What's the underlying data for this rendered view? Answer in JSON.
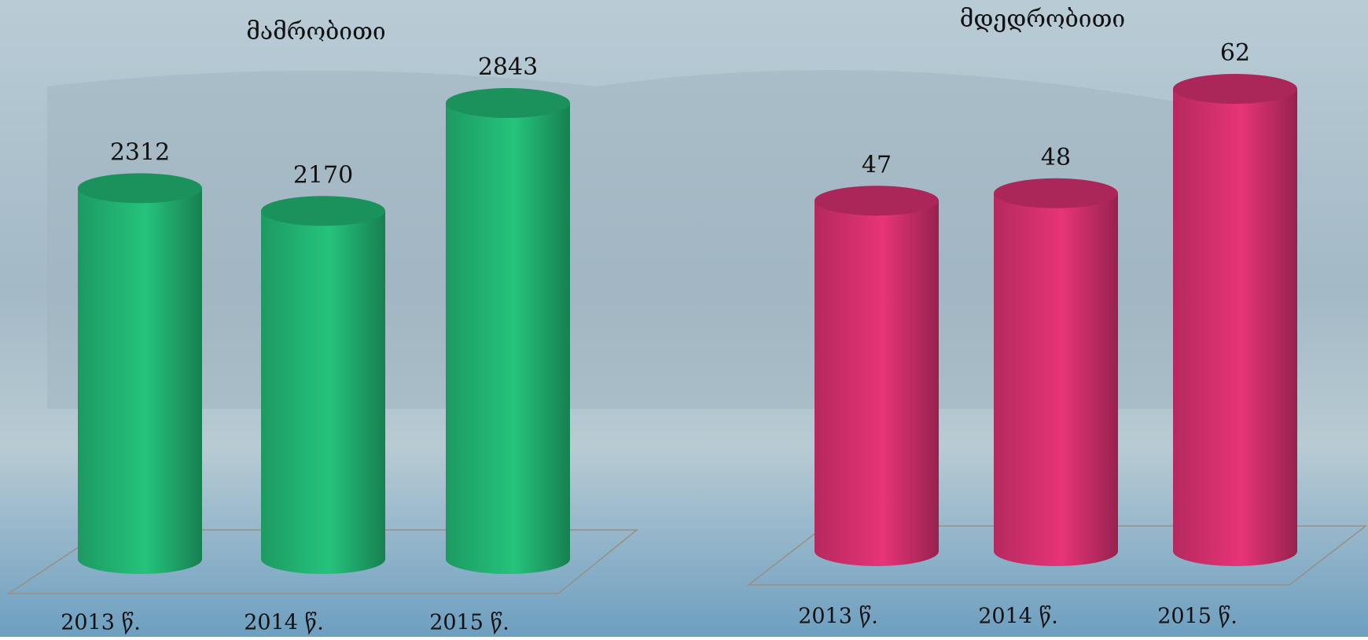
{
  "chart_data": [
    {
      "type": "bar",
      "title": "მამრობითი",
      "categories": [
        "2013 წ.",
        "2014 წ.",
        "2015 წ."
      ],
      "values": [
        2312,
        2170,
        2843
      ],
      "color": "#22b573"
    },
    {
      "type": "bar",
      "title": "მდედრობითი",
      "categories": [
        "2013 წ.",
        "2014 წ.",
        "2015 წ."
      ],
      "values": [
        47,
        48,
        62
      ],
      "color": "#d6306f"
    }
  ]
}
